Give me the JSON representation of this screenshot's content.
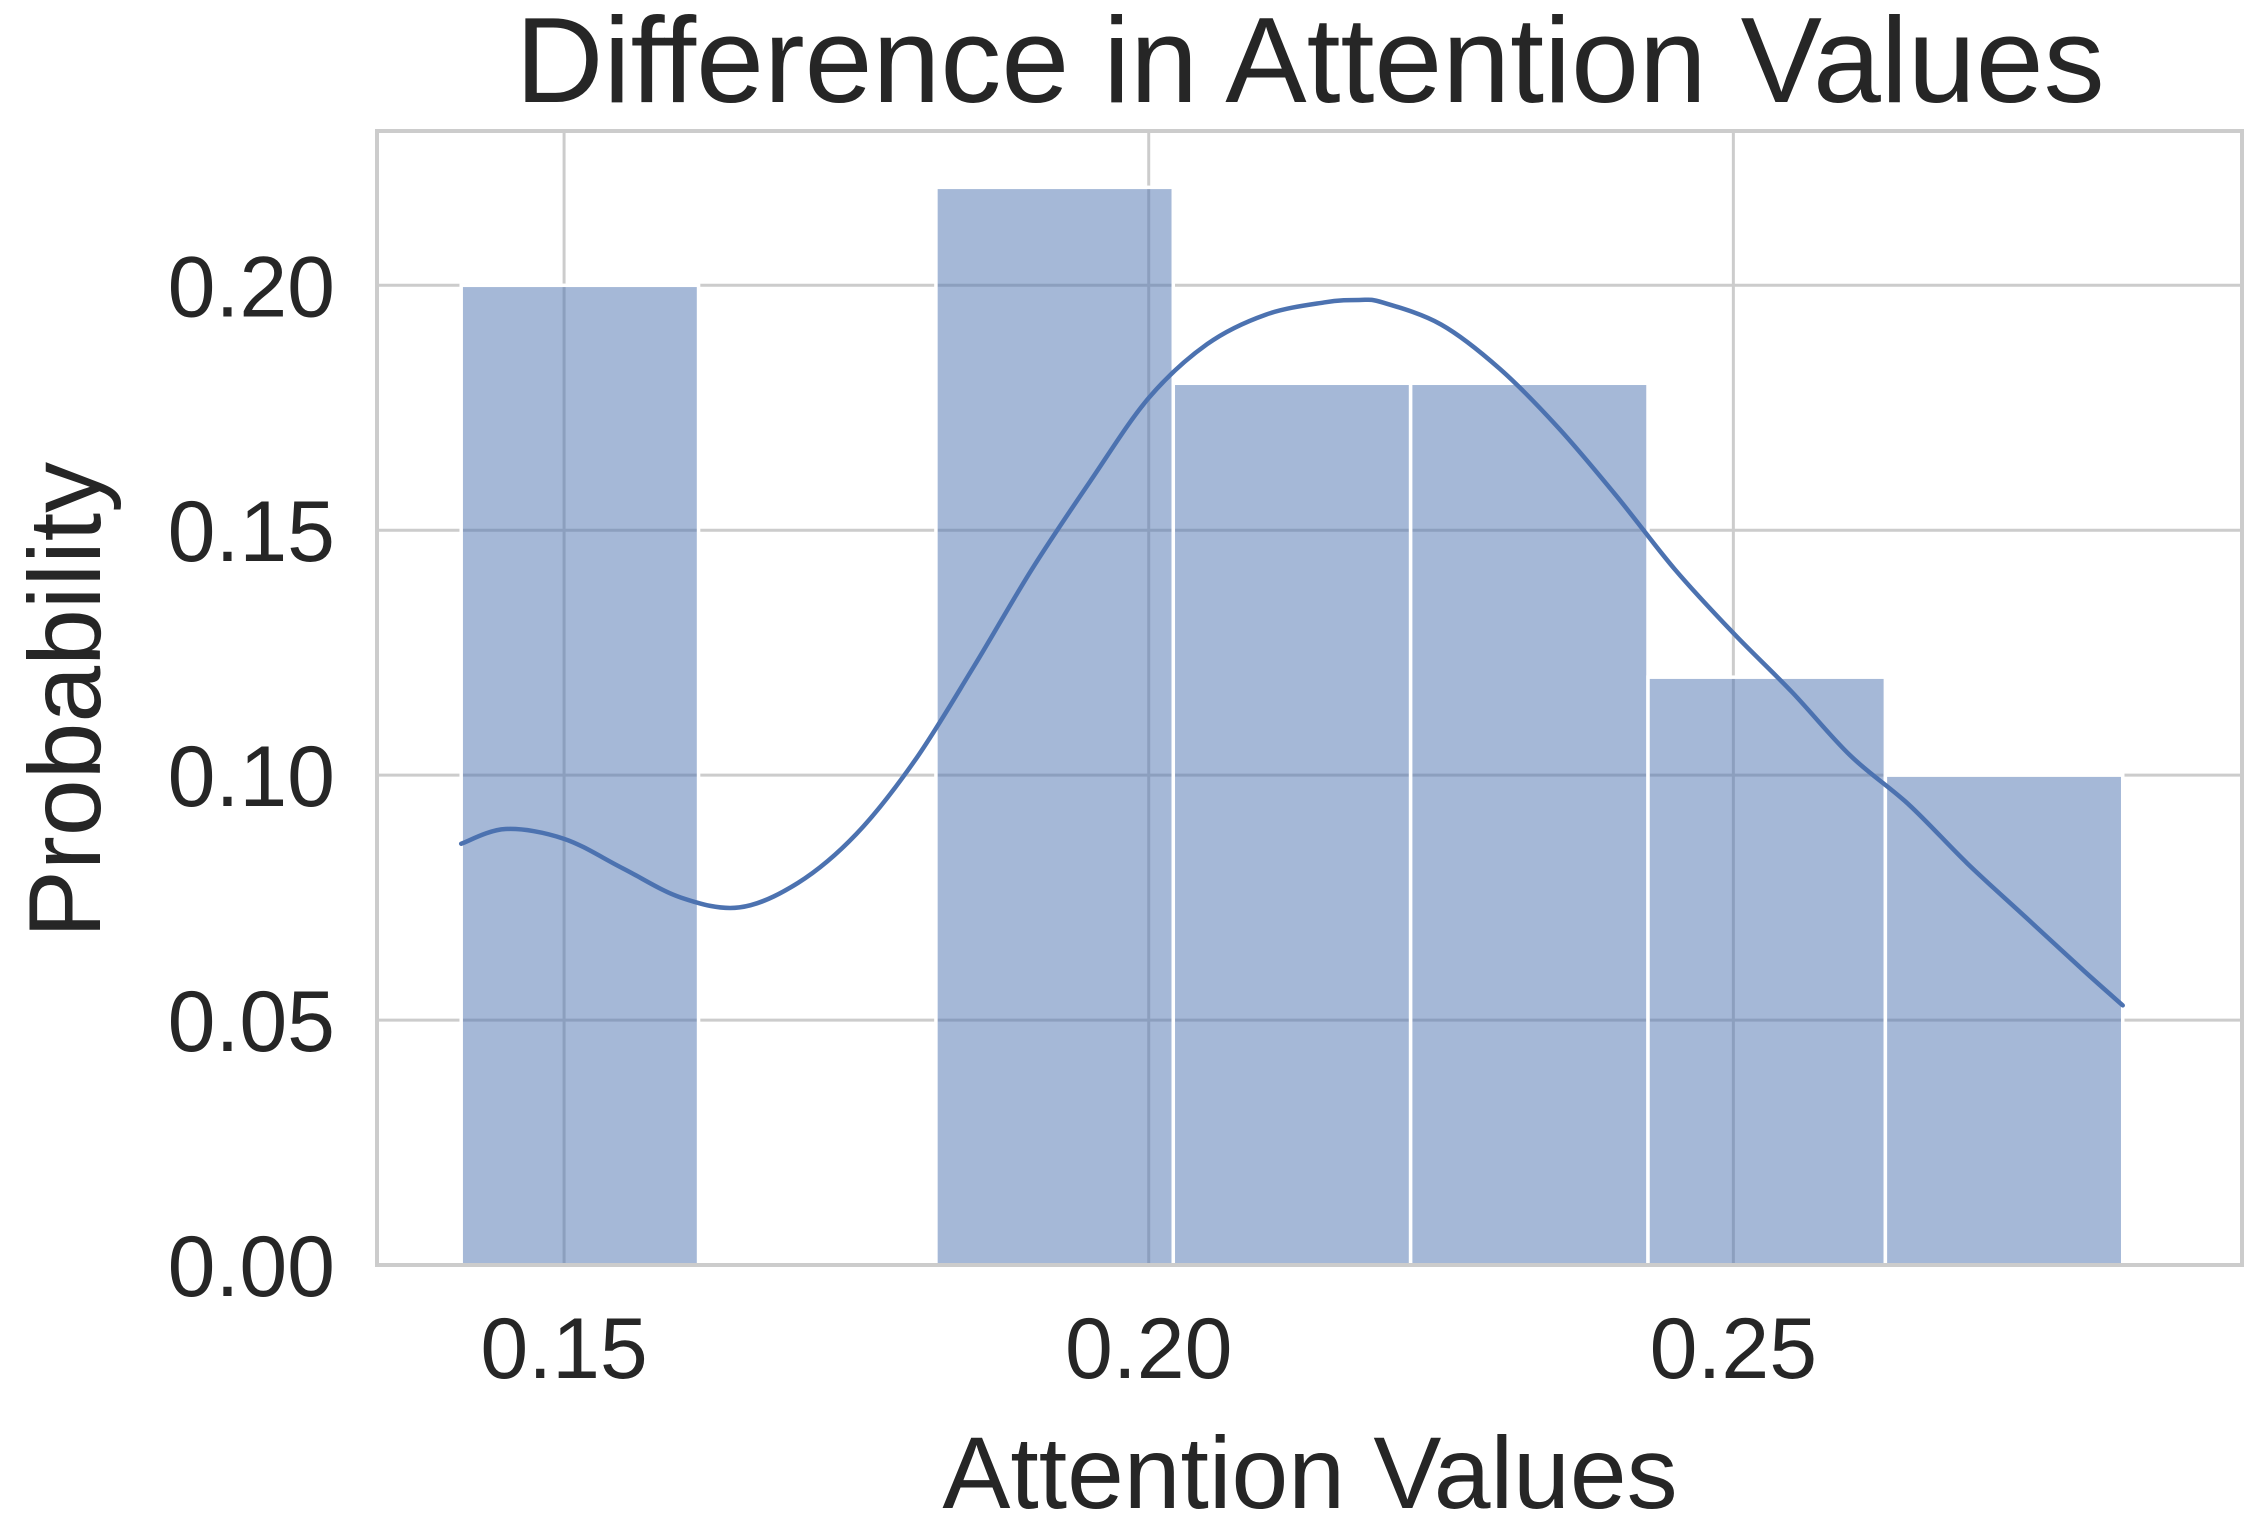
{
  "chart_data": {
    "type": "bar",
    "subtype": "histogram-with-kde",
    "title": "Difference in Attention Values",
    "xlabel": "Attention Values",
    "ylabel": "Probability",
    "xlim": [
      0.134,
      0.2935
    ],
    "ylim": [
      0.0,
      0.2315
    ],
    "xticks": [
      0.15,
      0.2,
      0.25
    ],
    "xtick_labels": [
      "0.15",
      "0.20",
      "0.25"
    ],
    "yticks": [
      0.0,
      0.05,
      0.1,
      0.15,
      0.2
    ],
    "ytick_labels": [
      "0.00",
      "0.05",
      "0.10",
      "0.15",
      "0.20"
    ],
    "grid": true,
    "bins": [
      {
        "x0": 0.1412,
        "x1": 0.1615,
        "value": 0.2
      },
      {
        "x0": 0.1615,
        "x1": 0.1818,
        "value": 0.0
      },
      {
        "x0": 0.1818,
        "x1": 0.2021,
        "value": 0.22
      },
      {
        "x0": 0.2021,
        "x1": 0.2224,
        "value": 0.18
      },
      {
        "x0": 0.2224,
        "x1": 0.2427,
        "value": 0.18
      },
      {
        "x0": 0.2427,
        "x1": 0.263,
        "value": 0.12
      },
      {
        "x0": 0.263,
        "x1": 0.2833,
        "value": 0.1
      }
    ],
    "kde": {
      "x": [
        0.1412,
        0.145,
        0.15,
        0.155,
        0.16,
        0.165,
        0.17,
        0.175,
        0.18,
        0.185,
        0.19,
        0.195,
        0.2,
        0.205,
        0.21,
        0.215,
        0.218,
        0.22,
        0.225,
        0.23,
        0.235,
        0.24,
        0.245,
        0.25,
        0.255,
        0.26,
        0.265,
        0.27,
        0.275,
        0.28,
        0.2833
      ],
      "y": [
        0.086,
        0.089,
        0.087,
        0.081,
        0.075,
        0.073,
        0.078,
        0.088,
        0.103,
        0.122,
        0.142,
        0.16,
        0.177,
        0.188,
        0.194,
        0.1965,
        0.197,
        0.1965,
        0.192,
        0.183,
        0.171,
        0.157,
        0.142,
        0.129,
        0.117,
        0.104,
        0.094,
        0.082,
        0.071,
        0.06,
        0.053
      ]
    },
    "colors": {
      "bar": "#4c72b0",
      "bar_opacity": 0.5,
      "kde": "#4c72b0",
      "grid": "#cccccc",
      "text": "#262626"
    }
  }
}
